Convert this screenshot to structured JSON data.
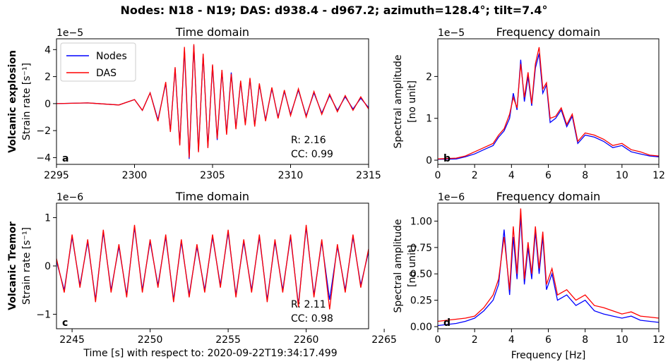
{
  "figure_title": "Nodes: N18 - N19; DAS: d938.4 - d967.2; azimuth=128.4°; tilt=7.4°",
  "shared_xlabel": "Time [s] with respect to: 2020-09-22T19:34:17.499",
  "colors": {
    "nodes": "#0000ff",
    "das": "#ff0000"
  },
  "row_labels": [
    {
      "bold": "Volcanic explosion",
      "normal": "Strain rate [s⁻¹]"
    },
    {
      "bold": "Volcanic Tremor",
      "normal": "Strain rate [s⁻¹]"
    }
  ],
  "chart_data": [
    {
      "id": "a",
      "type": "line",
      "title": "Time domain",
      "panel_letter": "a",
      "exponent_label": "1e−5",
      "xlabel": "",
      "ylabel": "",
      "xlim": [
        2295,
        2315
      ],
      "ylim": [
        -4.5,
        4.8
      ],
      "xticks": [
        2295,
        2300,
        2305,
        2310,
        2315
      ],
      "yticks": [
        -4,
        -2,
        0,
        2,
        4
      ],
      "yticklabels": [
        "−4",
        "−2",
        "0",
        "2",
        "4"
      ],
      "legend": {
        "position": "top-left",
        "entries": [
          "Nodes",
          "DAS"
        ]
      },
      "annotations": [
        "R: 2.16",
        "CC: 0.99"
      ],
      "series": [
        {
          "name": "Nodes",
          "x": [
            2295,
            2297,
            2299,
            2300,
            2300.5,
            2301,
            2301.5,
            2302,
            2302.3,
            2302.6,
            2302.9,
            2303.2,
            2303.5,
            2303.8,
            2304.1,
            2304.4,
            2304.7,
            2305,
            2305.3,
            2305.6,
            2305.9,
            2306.2,
            2306.5,
            2306.8,
            2307.1,
            2307.4,
            2307.7,
            2308,
            2308.4,
            2308.8,
            2309.2,
            2309.6,
            2310,
            2310.5,
            2311,
            2311.5,
            2312,
            2312.5,
            2313,
            2313.5,
            2314,
            2314.5,
            2315
          ],
          "y": [
            0,
            0.05,
            -0.1,
            0.3,
            -0.5,
            0.8,
            -1.2,
            1.5,
            -2.0,
            2.6,
            -3.0,
            4.0,
            -4.1,
            4.3,
            -3.5,
            3.6,
            -3.2,
            2.8,
            -2.7,
            2.4,
            -2.2,
            2.3,
            -1.8,
            1.6,
            -1.5,
            1.8,
            -1.6,
            1.4,
            -1.2,
            1.1,
            -1.0,
            0.9,
            -0.8,
            1.0,
            -0.9,
            0.8,
            -0.7,
            0.6,
            -0.5,
            0.5,
            -0.4,
            0.4,
            -0.3
          ]
        },
        {
          "name": "DAS",
          "x": [
            2295,
            2297,
            2299,
            2300,
            2300.5,
            2301,
            2301.5,
            2302,
            2302.3,
            2302.6,
            2302.9,
            2303.2,
            2303.5,
            2303.8,
            2304.1,
            2304.4,
            2304.7,
            2305,
            2305.3,
            2305.6,
            2305.9,
            2306.2,
            2306.5,
            2306.8,
            2307.1,
            2307.4,
            2307.7,
            2308,
            2308.4,
            2308.8,
            2309.2,
            2309.6,
            2310,
            2310.5,
            2311,
            2311.5,
            2312,
            2312.5,
            2313,
            2313.5,
            2314,
            2314.5,
            2315
          ],
          "y": [
            0,
            0.05,
            -0.1,
            0.3,
            -0.5,
            0.8,
            -1.3,
            1.6,
            -2.1,
            2.7,
            -3.1,
            4.2,
            -4.0,
            4.4,
            -3.6,
            3.7,
            -3.3,
            2.9,
            -2.6,
            2.5,
            -2.3,
            2.2,
            -1.9,
            1.7,
            -1.6,
            1.9,
            -1.7,
            1.5,
            -1.3,
            1.2,
            -1.1,
            1.0,
            -0.9,
            1.1,
            -1.0,
            0.9,
            -0.8,
            0.7,
            -0.6,
            0.6,
            -0.5,
            0.5,
            -0.4
          ]
        }
      ]
    },
    {
      "id": "b",
      "type": "line",
      "title": "Frequency domain",
      "panel_letter": "b",
      "exponent_label": "1e−5",
      "xlabel": "",
      "ylabel": "Spectral amplitude\n[no unit]",
      "xlim": [
        0,
        12
      ],
      "ylim": [
        -0.1,
        2.9
      ],
      "xticks": [
        0,
        2,
        4,
        6,
        8,
        10,
        12
      ],
      "yticks": [
        0,
        1,
        2
      ],
      "yticklabels": [
        "0",
        "1",
        "2"
      ],
      "series": [
        {
          "name": "Nodes",
          "x": [
            0,
            1,
            1.5,
            2,
            2.5,
            3,
            3.3,
            3.6,
            3.9,
            4.1,
            4.3,
            4.5,
            4.7,
            4.9,
            5.1,
            5.3,
            5.5,
            5.7,
            5.9,
            6.1,
            6.4,
            6.7,
            7,
            7.3,
            7.6,
            8,
            8.5,
            9,
            9.5,
            10,
            10.5,
            11,
            11.5,
            12
          ],
          "y": [
            0.02,
            0.03,
            0.08,
            0.15,
            0.25,
            0.35,
            0.55,
            0.7,
            1.0,
            1.6,
            1.2,
            2.4,
            1.4,
            2.0,
            1.3,
            2.2,
            2.55,
            1.6,
            1.8,
            0.9,
            1.0,
            1.2,
            0.8,
            1.05,
            0.4,
            0.6,
            0.55,
            0.45,
            0.3,
            0.35,
            0.2,
            0.15,
            0.1,
            0.08
          ]
        },
        {
          "name": "DAS",
          "x": [
            0,
            1,
            1.5,
            2,
            2.5,
            3,
            3.3,
            3.6,
            3.9,
            4.1,
            4.3,
            4.5,
            4.7,
            4.9,
            5.1,
            5.3,
            5.5,
            5.7,
            5.9,
            6.1,
            6.4,
            6.7,
            7,
            7.3,
            7.6,
            8,
            8.5,
            9,
            9.5,
            10,
            10.5,
            11,
            11.5,
            12
          ],
          "y": [
            0.03,
            0.05,
            0.1,
            0.2,
            0.3,
            0.4,
            0.6,
            0.75,
            1.1,
            1.5,
            1.25,
            2.3,
            1.5,
            2.1,
            1.35,
            2.3,
            2.7,
            1.7,
            1.85,
            1.0,
            1.05,
            1.25,
            0.85,
            1.1,
            0.45,
            0.65,
            0.6,
            0.5,
            0.35,
            0.4,
            0.25,
            0.2,
            0.12,
            0.1
          ]
        }
      ]
    },
    {
      "id": "c",
      "type": "line",
      "title": "Time domain",
      "panel_letter": "c",
      "exponent_label": "1e−6",
      "xlabel": "",
      "ylabel": "",
      "xlim": [
        2244,
        2264
      ],
      "ylim": [
        -1.3,
        1.3
      ],
      "xticks": [
        2245,
        2250,
        2255,
        2260,
        2265
      ],
      "yticks": [
        -1,
        0,
        1
      ],
      "yticklabels": [
        "−1",
        "0",
        "1"
      ],
      "annotations": [
        "R: 2.11",
        "CC: 0.98"
      ],
      "series": [
        {
          "name": "Nodes",
          "x": [
            2244,
            2244.5,
            2245,
            2245.5,
            2246,
            2246.5,
            2247,
            2247.5,
            2248,
            2248.5,
            2249,
            2249.5,
            2250,
            2250.5,
            2251,
            2251.5,
            2252,
            2252.5,
            2253,
            2253.5,
            2254,
            2254.5,
            2255,
            2255.5,
            2256,
            2256.5,
            2257,
            2257.5,
            2258,
            2258.5,
            2259,
            2259.5,
            2260,
            2260.5,
            2261,
            2261.5,
            2262,
            2262.5,
            2263,
            2263.5,
            2264
          ],
          "y": [
            0.1,
            -0.5,
            0.6,
            -0.4,
            0.5,
            -0.7,
            0.7,
            -0.5,
            0.4,
            -0.6,
            0.8,
            -0.5,
            0.5,
            -0.4,
            0.6,
            -0.7,
            0.5,
            -0.6,
            0.4,
            -0.5,
            0.6,
            -0.4,
            0.7,
            -0.6,
            0.5,
            -0.5,
            0.6,
            -0.7,
            0.5,
            -0.5,
            0.6,
            -0.8,
            0.8,
            -0.6,
            0.5,
            -0.7,
            0.4,
            -0.5,
            0.6,
            -0.4,
            0.3
          ]
        },
        {
          "name": "DAS",
          "x": [
            2244,
            2244.5,
            2245,
            2245.5,
            2246,
            2246.5,
            2247,
            2247.5,
            2248,
            2248.5,
            2249,
            2249.5,
            2250,
            2250.5,
            2251,
            2251.5,
            2252,
            2252.5,
            2253,
            2253.5,
            2254,
            2254.5,
            2255,
            2255.5,
            2256,
            2256.5,
            2257,
            2257.5,
            2258,
            2258.5,
            2259,
            2259.5,
            2260,
            2260.5,
            2261,
            2261.5,
            2262,
            2262.5,
            2263,
            2263.5,
            2264
          ],
          "y": [
            0.15,
            -0.55,
            0.65,
            -0.45,
            0.55,
            -0.75,
            0.75,
            -0.55,
            0.45,
            -0.65,
            0.85,
            -0.55,
            0.55,
            -0.45,
            0.65,
            -0.75,
            0.55,
            -0.65,
            0.45,
            -0.55,
            0.65,
            -0.45,
            0.75,
            -0.65,
            0.55,
            -0.55,
            0.65,
            -0.75,
            0.55,
            -0.55,
            0.65,
            -0.85,
            0.85,
            -0.65,
            0.55,
            -0.9,
            0.45,
            -0.55,
            0.65,
            -0.45,
            0.35
          ]
        }
      ]
    },
    {
      "id": "d",
      "type": "line",
      "title": "Frequency domain",
      "panel_letter": "d",
      "exponent_label": "1e−6",
      "xlabel": "Frequency [Hz]",
      "ylabel": "Spectral amplitude\n[no unit]",
      "xlim": [
        0,
        12
      ],
      "ylim": [
        -0.02,
        1.17
      ],
      "xticks": [
        0,
        2,
        4,
        6,
        8,
        10,
        12
      ],
      "yticks": [
        0.0,
        0.25,
        0.5,
        0.75,
        1.0
      ],
      "yticklabels": [
        "0.00",
        "0.25",
        "0.50",
        "0.75",
        "1.00"
      ],
      "series": [
        {
          "name": "Nodes",
          "x": [
            0,
            0.5,
            1,
            1.5,
            2,
            2.5,
            3,
            3.3,
            3.6,
            3.9,
            4.1,
            4.3,
            4.5,
            4.7,
            4.9,
            5.1,
            5.3,
            5.5,
            5.7,
            5.9,
            6.2,
            6.5,
            7,
            7.5,
            8,
            8.5,
            9,
            9.5,
            10,
            10.5,
            11,
            11.5,
            12
          ],
          "y": [
            0.01,
            0.02,
            0.03,
            0.05,
            0.08,
            0.15,
            0.25,
            0.4,
            0.92,
            0.3,
            0.85,
            0.45,
            1.05,
            0.4,
            0.75,
            0.45,
            0.9,
            0.5,
            0.85,
            0.35,
            0.5,
            0.25,
            0.3,
            0.2,
            0.25,
            0.15,
            0.12,
            0.1,
            0.08,
            0.1,
            0.06,
            0.05,
            0.04
          ]
        },
        {
          "name": "DAS",
          "x": [
            0,
            0.5,
            1,
            1.5,
            2,
            2.5,
            3,
            3.3,
            3.6,
            3.9,
            4.1,
            4.3,
            4.5,
            4.7,
            4.9,
            5.1,
            5.3,
            5.5,
            5.7,
            5.9,
            6.2,
            6.5,
            7,
            7.5,
            8,
            8.5,
            9,
            9.5,
            10,
            10.5,
            11,
            11.5,
            12
          ],
          "y": [
            0.05,
            0.06,
            0.07,
            0.08,
            0.1,
            0.18,
            0.3,
            0.45,
            0.85,
            0.35,
            0.95,
            0.5,
            1.12,
            0.45,
            0.8,
            0.5,
            0.95,
            0.55,
            0.9,
            0.4,
            0.55,
            0.3,
            0.35,
            0.25,
            0.3,
            0.2,
            0.18,
            0.15,
            0.12,
            0.14,
            0.1,
            0.09,
            0.08
          ]
        }
      ]
    }
  ]
}
